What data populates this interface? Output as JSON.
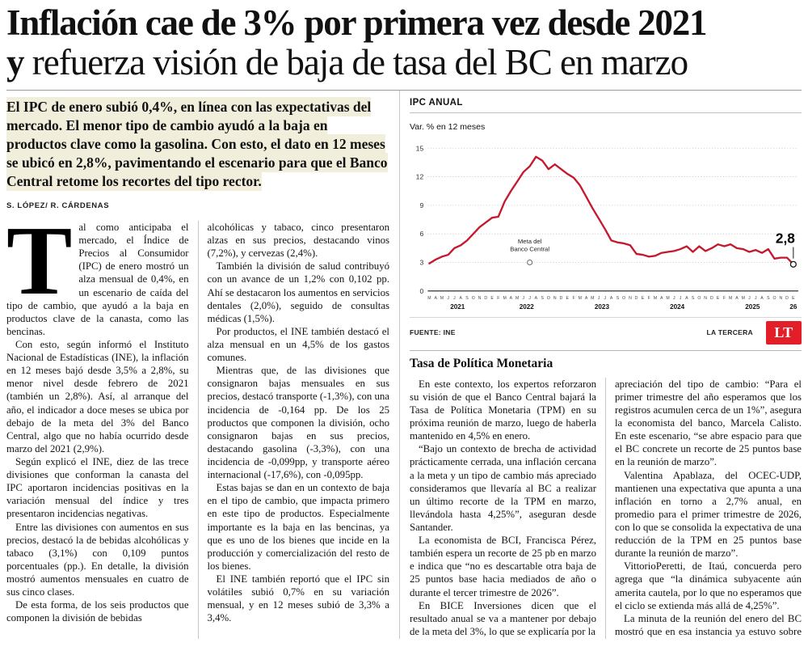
{
  "headline": {
    "line1": "Inflación cae de 3% por primera vez desde 2021",
    "line2_lead": "y",
    "line2_rest": " refuerza visión de baja de tasa del BC en marzo"
  },
  "lede": "El IPC de enero subió 0,4%, en línea con las expectativas del mercado. El menor tipo de cambio ayudó a la baja en productos clave como la gasolina. Con esto, el dato en 12 meses se ubicó en 2,8%, pavimentando el escenario para que el Banco Central retome los recortes del tipo rector.",
  "byline": "S. LÓPEZ/ R. CÁRDENAS",
  "article": {
    "drop_cap": "T",
    "col1": [
      "al como anticipaba el mercado, el Índice de Precios al Consumidor (IPC) de enero mostró un alza mensual de 0,4%, en un escenario de caída del tipo de cambio, que ayudó a la baja en productos clave de la canasta, como las bencinas.",
      "Con esto, según informó el Instituto Nacional de Estadísticas (INE), la inflación en 12 meses bajó desde 3,5% a 2,8%, su menor nivel desde febrero de 2021 (también un 2,8%). Así, al arranque del año, el indicador a doce meses se ubica por debajo de la meta del 3% del Banco Central, algo que no había ocurrido desde marzo del 2021 (2,9%).",
      "Según explicó el INE, diez de las trece divisiones que conforman la canasta del IPC aportaron incidencias positivas en la variación mensual del índice y tres presentaron incidencias negativas.",
      "Entre las divisiones con aumentos en sus precios, destacó la de bebidas alcohólicas y tabaco (3,1%) con 0,109 puntos porcentuales (pp.). En detalle, la división mostró aumentos mensuales en cuatro de sus cinco clases.",
      "De esta forma, de los seis productos que componen la división de bebidas"
    ],
    "col2": [
      "alcohólicas y tabaco, cinco presentaron alzas en sus precios, destacando vinos (7,2%), y cervezas (2,4%).",
      "También la división de salud contribuyó con un avance de un 1,2% con 0,102 pp. Ahí se destacaron los aumentos en servicios dentales (2,0%), seguido de consultas médicas (1,5%).",
      "Por productos, el INE también destacó el alza mensual en un 4,5% de los gastos comunes.",
      "Mientras que, de las divisiones que consignaron bajas mensuales en sus precios, destacó transporte (-1,3%), con una incidencia de -0,164 pp. De los 25 productos que componen la división, ocho consignaron bajas en sus precios, destacando gasolina (-3,3%), con una incidencia de -0,099pp, y transporte aéreo internacional (-17,6%), con -0,095pp.",
      "Estas bajas se dan en un contexto de baja en el tipo de cambio, que impacta primero en este tipo de productos. Especialmente importante es la baja en las bencinas, ya que es uno de los bienes que incide en la producción y comercialización del resto de los bienes.",
      "El INE también reportó que el IPC sin volátiles subió 0,7% en su variación mensual, y en 12 meses subió de 3,3% a 3,4%."
    ],
    "section_title": "Tasa de Política Monetaria",
    "col3": [
      "En este contexto, los expertos reforzaron su visión de que el Banco Central bajará la Tasa de Política Monetaria (TPM) en su próxima reunión de marzo, luego de haberla mantenido en 4,5% en enero.",
      "“Bajo un contexto de brecha de actividad prácticamente cerrada, una inflación cercana a la meta y un tipo de cambio más apreciado consideramos que llevaría al BC a realizar un último recorte de la TPM en marzo, llevándola hasta 4,25%”, aseguran desde Santander.",
      "La economista de BCI, Francisca Pérez, también espera un recorte de 25 pb en marzo e indica que “no es descartable otra baja de 25 puntos base hacia mediados de año o durante el tercer trimestre de 2026”.",
      "En BICE Inversiones dicen que el resultado anual se va a mantener por debajo de la meta del 3%, lo que se explicaría por la"
    ],
    "col4": [
      "apreciación del tipo de cambio: “Para el primer trimestre del año esperamos que los registros acumulen cerca de un 1%”, asegura la economista del banco, Marcela Calisto. En este escenario, “se abre espacio para que el BC concrete un recorte de 25 puntos base en la reunión de marzo”.",
      "Valentina Apablaza, del OCEC-UDP, mantienen una expectativa que apunta a una inflación en torno a 2,7% anual, en promedio para el primer trimestre de 2026, con lo que se consolida la expectativa de una reducción de la TPM en 25 puntos base durante la reunión de marzo”.",
      "VittorioPeretti, de Itaú, concuerda pero agrega que “la dinámica subyacente aún amerita cautela, por lo que no esperamos que el ciclo se extienda más allá de 4,25%”.",
      "La minuta de la reunión del enero del BC mostró que en esa instancia ya estuvo sobre la mesa un nuevo recorte. ●"
    ]
  },
  "chart_data": {
    "type": "line",
    "title": "IPC ANUAL",
    "subtitle": "Var. % en 12 meses",
    "source": "FUENTE: INE",
    "credit": "LA TERCERA",
    "logo_text": "LT",
    "logo_color": "#e31e28",
    "line_color": "#c5182d",
    "ylim": [
      0,
      15
    ],
    "yticks": [
      0,
      3,
      6,
      9,
      12,
      15
    ],
    "meta_label_lines": [
      "Meta del",
      "Banco Central"
    ],
    "meta_value": 3,
    "end_label": "2,8",
    "month_labels": [
      "M",
      "A",
      "M",
      "J",
      "J",
      "A",
      "S",
      "O",
      "N",
      "D",
      "E",
      "F",
      "M",
      "A",
      "M",
      "J",
      "J",
      "A",
      "S",
      "O",
      "N",
      "D",
      "E",
      "F",
      "M",
      "A",
      "M",
      "J",
      "J",
      "A",
      "S",
      "O",
      "N",
      "D",
      "E",
      "F",
      "M",
      "A",
      "M",
      "J",
      "J",
      "A",
      "S",
      "O",
      "N",
      "D",
      "E",
      "F",
      "M",
      "A",
      "M",
      "J",
      "J",
      "A",
      "S",
      "O",
      "N",
      "D",
      "E"
    ],
    "years": [
      {
        "label": "2021",
        "start": 0,
        "end": 9
      },
      {
        "label": "2022",
        "start": 10,
        "end": 21
      },
      {
        "label": "2023",
        "start": 22,
        "end": 33
      },
      {
        "label": "2024",
        "start": 34,
        "end": 45
      },
      {
        "label": "2025",
        "start": 46,
        "end": 57
      },
      {
        "label": "26",
        "start": 58,
        "end": 58
      }
    ],
    "values": [
      2.9,
      3.3,
      3.6,
      3.8,
      4.5,
      4.8,
      5.3,
      6.0,
      6.7,
      7.2,
      7.7,
      7.8,
      9.4,
      10.5,
      11.5,
      12.5,
      13.1,
      14.1,
      13.7,
      12.8,
      13.3,
      12.8,
      12.3,
      11.9,
      11.1,
      9.9,
      8.7,
      7.6,
      6.5,
      5.3,
      5.1,
      5.0,
      4.8,
      3.9,
      3.8,
      3.6,
      3.7,
      4.0,
      4.1,
      4.2,
      4.4,
      4.7,
      4.1,
      4.7,
      4.2,
      4.5,
      4.9,
      4.7,
      4.9,
      4.5,
      4.4,
      4.1,
      4.3,
      4.0,
      4.4,
      3.4,
      3.5,
      3.5,
      2.8
    ]
  }
}
